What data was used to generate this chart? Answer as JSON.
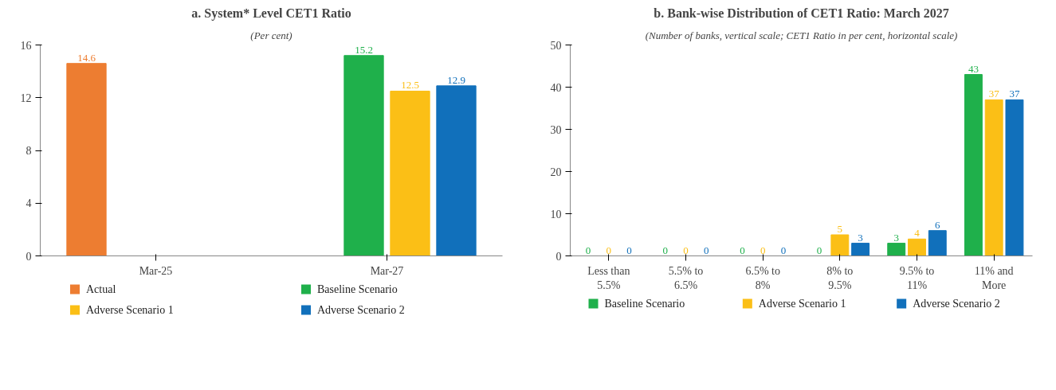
{
  "chart_data": [
    {
      "type": "bar",
      "title": "a. System* Level CET1 Ratio",
      "subtitle": "(Per cent)",
      "categories": [
        "Mar-25",
        "Mar-27"
      ],
      "series": [
        {
          "name": "Actual",
          "color": "#ed7d31",
          "values": [
            14.6,
            null
          ]
        },
        {
          "name": "Baseline Scenario",
          "color": "#1fb04b",
          "values": [
            null,
            15.2
          ]
        },
        {
          "name": "Adverse Scenario 1",
          "color": "#fbbf16",
          "values": [
            null,
            12.5
          ]
        },
        {
          "name": "Adverse Scenario 2",
          "color": "#1170bb",
          "values": [
            null,
            12.9
          ]
        }
      ],
      "ylim": [
        0,
        16
      ],
      "yticks": [
        0,
        4,
        8,
        12,
        16
      ],
      "grid": false,
      "legend": "bottom",
      "data_labels": true
    },
    {
      "type": "bar",
      "title": "b. Bank-wise Distribution of CET1 Ratio: March 2027",
      "subtitle": "(Number of banks, vertical scale; CET1 Ratio in per cent, horizontal scale)",
      "categories": [
        "Less than\n5.5%",
        "5.5% to\n6.5%",
        "6.5% to\n8%",
        "8% to\n9.5%",
        "9.5% to\n11%",
        "11% and\nMore"
      ],
      "series": [
        {
          "name": "Baseline Scenario",
          "color": "#1fb04b",
          "values": [
            0,
            0,
            0,
            0,
            3,
            43
          ]
        },
        {
          "name": "Adverse Scenario 1",
          "color": "#fbbf16",
          "values": [
            0,
            0,
            0,
            5,
            4,
            37
          ]
        },
        {
          "name": "Adverse Scenario 2",
          "color": "#1170bb",
          "values": [
            0,
            0,
            0,
            3,
            6,
            37
          ]
        }
      ],
      "ylim": [
        0,
        50
      ],
      "yticks": [
        0,
        10,
        20,
        30,
        40,
        50
      ],
      "grid": false,
      "legend": "bottom",
      "data_labels": true
    }
  ]
}
